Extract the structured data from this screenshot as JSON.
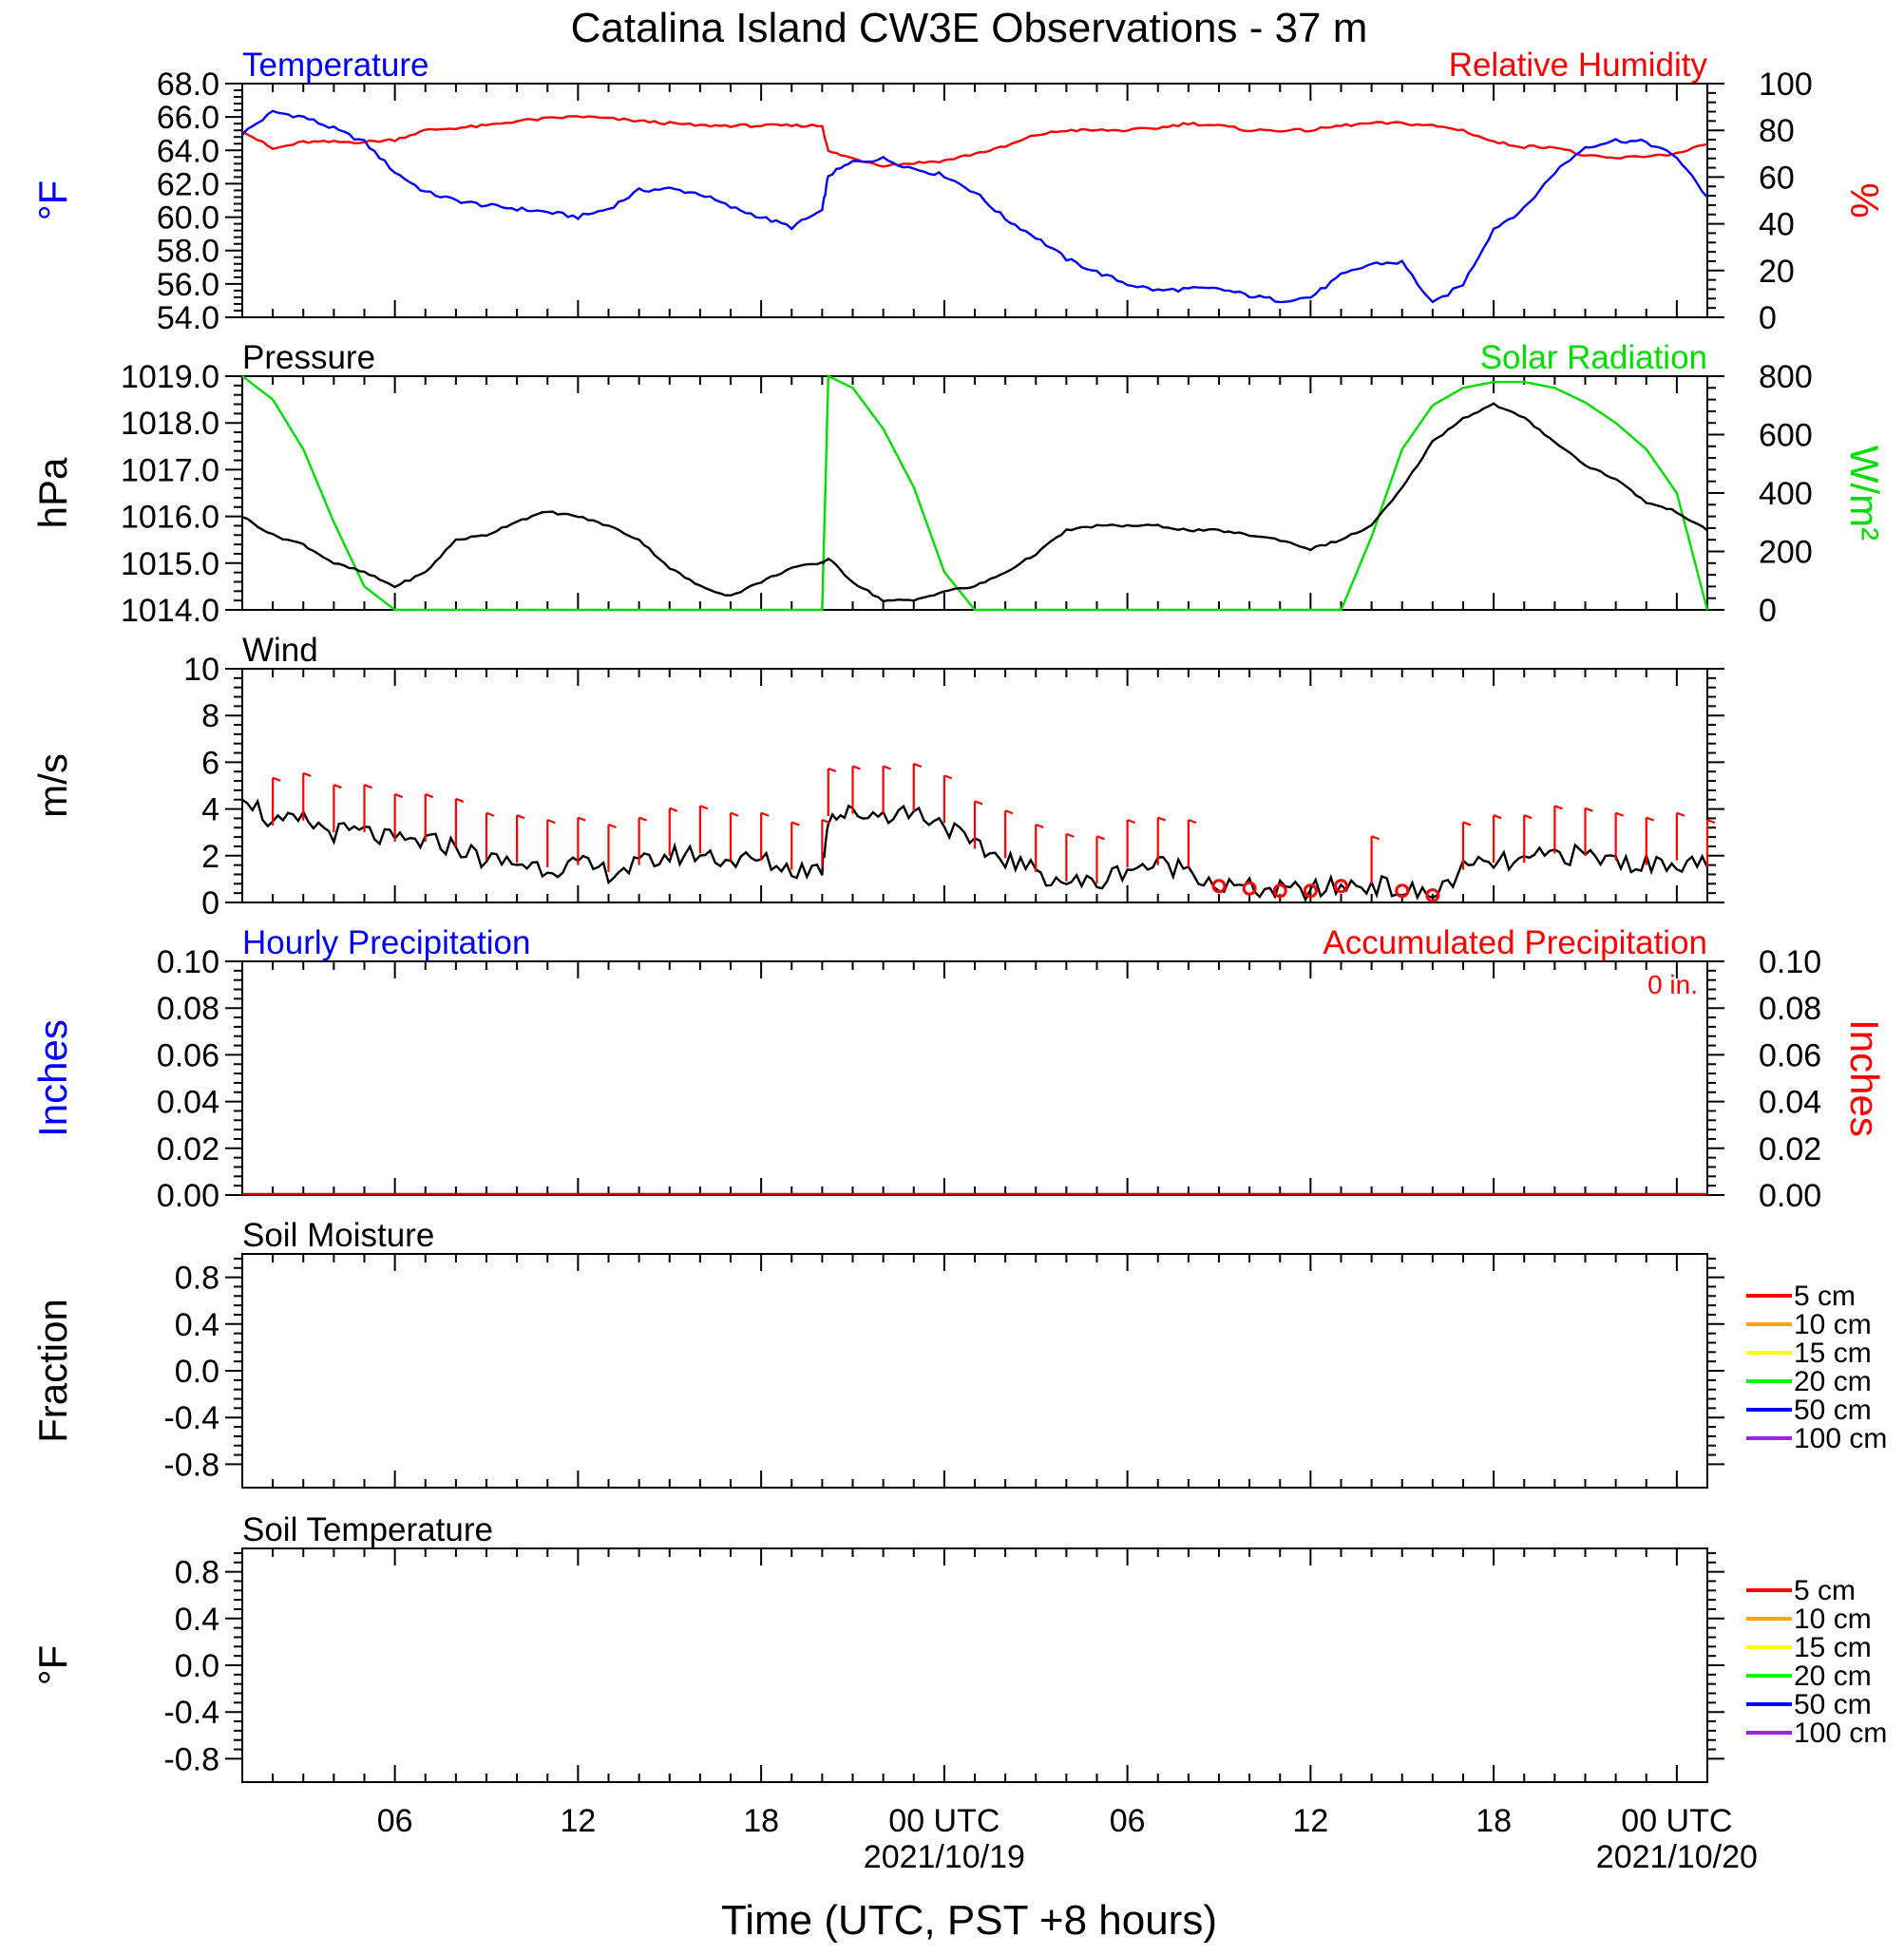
{
  "title": "Catalina Island CW3E Observations - 37 m",
  "xaxis": {
    "label": "Time (UTC, PST +8 hours)",
    "ticks": [
      "06",
      "12",
      "18",
      "00 UTC",
      "06",
      "12",
      "18",
      "00 UTC"
    ],
    "dates": [
      "2021/10/19",
      "2021/10/20"
    ]
  },
  "colors": {
    "temperature": "#0000ff",
    "humidity": "#ff0000",
    "pressure": "#000000",
    "solar": "#00dd00",
    "wind": "#000000",
    "barb": "#ff0000",
    "precip_hourly": "#0000ff",
    "precip_accum": "#cc0000"
  },
  "panels": {
    "temp_rh": {
      "left_title": "Temperature",
      "right_title": "Relative Humidity",
      "left_unit": "°F",
      "right_unit": "%",
      "left_ticks": [
        "68.0",
        "66.0",
        "64.0",
        "62.0",
        "60.0",
        "58.0",
        "56.0",
        "54.0"
      ],
      "right_ticks": [
        "100",
        "80",
        "60",
        "40",
        "20",
        "0"
      ]
    },
    "pressure_solar": {
      "left_title": "Pressure",
      "right_title": "Solar Radiation",
      "left_unit": "hPa",
      "right_unit": "W/m²",
      "left_ticks": [
        "1019.0",
        "1018.0",
        "1017.0",
        "1016.0",
        "1015.0",
        "1014.0"
      ],
      "right_ticks": [
        "800",
        "600",
        "400",
        "200",
        "0"
      ]
    },
    "wind": {
      "left_title": "Wind",
      "left_unit": "m/s",
      "left_ticks": [
        "10",
        "8",
        "6",
        "4",
        "2",
        "0"
      ]
    },
    "precip": {
      "left_title": "Hourly Precipitation",
      "right_title": "Accumulated Precipitation",
      "accum_total": "0 in.",
      "left_unit": "Inches",
      "right_unit": "Inches",
      "left_ticks": [
        "0.10",
        "0.08",
        "0.06",
        "0.04",
        "0.02",
        "0.00"
      ],
      "right_ticks": [
        "0.10",
        "0.08",
        "0.06",
        "0.04",
        "0.02",
        "0.00"
      ]
    },
    "soil_moisture": {
      "left_title": "Soil Moisture",
      "left_unit": "Fraction",
      "left_ticks": [
        "0.8",
        "0.4",
        "0.0",
        "-0.4",
        "-0.8"
      ],
      "legend": [
        {
          "label": "5 cm",
          "color": "#ff0000"
        },
        {
          "label": "10 cm",
          "color": "#ffa500"
        },
        {
          "label": "15 cm",
          "color": "#ffff00"
        },
        {
          "label": "20 cm",
          "color": "#00ff00"
        },
        {
          "label": "50 cm",
          "color": "#0000ff"
        },
        {
          "label": "100 cm",
          "color": "#a020f0"
        }
      ]
    },
    "soil_temperature": {
      "left_title": "Soil Temperature",
      "left_unit": "°F",
      "left_ticks": [
        "0.8",
        "0.4",
        "0.0",
        "-0.4",
        "-0.8"
      ],
      "legend": [
        {
          "label": "5 cm",
          "color": "#ff0000"
        },
        {
          "label": "10 cm",
          "color": "#ffa500"
        },
        {
          "label": "15 cm",
          "color": "#ffff00"
        },
        {
          "label": "20 cm",
          "color": "#00ff00"
        },
        {
          "label": "50 cm",
          "color": "#0000ff"
        },
        {
          "label": "100 cm",
          "color": "#a020f0"
        }
      ]
    }
  },
  "chart_data": [
    {
      "type": "line",
      "x_units": "hours since 2021-10-18 01 UTC",
      "x": [
        0,
        1,
        2,
        3,
        4,
        5,
        6,
        7,
        8,
        9,
        10,
        11,
        12,
        13,
        14,
        15,
        16,
        17,
        18,
        19,
        19.2,
        20,
        21,
        22,
        23,
        24,
        25,
        26,
        27,
        28,
        29,
        30,
        31,
        32,
        33,
        34,
        35,
        36,
        37,
        38,
        39,
        40,
        41,
        42,
        43,
        44,
        45,
        46,
        47,
        48
      ],
      "ylim_left": [
        54,
        68
      ],
      "ylim_right": [
        0,
        100
      ],
      "series": [
        {
          "name": "Temperature",
          "axis": "left",
          "values": [
            65.0,
            66.3,
            66.0,
            65.3,
            64.5,
            62.7,
            61.5,
            61.0,
            60.7,
            60.5,
            60.3,
            60.0,
            60.5,
            61.6,
            61.7,
            61.4,
            60.6,
            60.0,
            59.4,
            60.4,
            62.5,
            63.3,
            63.5,
            62.9,
            62.5,
            61.5,
            59.9,
            58.8,
            57.5,
            56.7,
            56.0,
            55.6,
            55.7,
            55.7,
            55.3,
            55.0,
            55.2,
            56.5,
            57.2,
            57.3,
            54.8,
            56.0,
            59.3,
            60.5,
            62.7,
            64.2,
            64.6,
            64.5,
            63.6,
            61.2
          ]
        },
        {
          "name": "Relative Humidity",
          "axis": "right",
          "values": [
            80,
            72,
            75,
            75,
            75,
            76,
            80,
            81,
            82,
            84,
            85,
            86,
            85,
            84,
            83,
            82,
            82,
            82,
            82,
            82,
            71,
            68,
            65,
            66,
            67,
            70,
            73,
            78,
            80,
            80,
            80,
            81,
            83,
            82,
            80,
            80,
            80,
            82,
            83,
            83,
            82,
            80,
            75,
            73,
            73,
            69,
            68,
            69,
            70,
            74
          ]
        }
      ]
    },
    {
      "type": "line",
      "x_units": "hours since 2021-10-18 01 UTC",
      "x": [
        0,
        1,
        2,
        3,
        4,
        5,
        6,
        7,
        8,
        9,
        10,
        11,
        12,
        13,
        14,
        15,
        16,
        17,
        18,
        19,
        19.2,
        20,
        21,
        22,
        23,
        24,
        25,
        26,
        27,
        28,
        29,
        30,
        31,
        32,
        33,
        34,
        35,
        36,
        37,
        38,
        39,
        40,
        41,
        42,
        43,
        44,
        45,
        46,
        47,
        48
      ],
      "ylim_left": [
        1014,
        1019
      ],
      "ylim_right": [
        0,
        800
      ],
      "series": [
        {
          "name": "Pressure",
          "axis": "left",
          "values": [
            1016.0,
            1015.6,
            1015.4,
            1015.0,
            1014.8,
            1014.5,
            1014.8,
            1015.5,
            1015.6,
            1015.9,
            1016.1,
            1016.0,
            1015.8,
            1015.5,
            1014.9,
            1014.5,
            1014.3,
            1014.6,
            1014.9,
            1015.0,
            1015.1,
            1014.6,
            1014.2,
            1014.2,
            1014.4,
            1014.5,
            1014.8,
            1015.2,
            1015.7,
            1015.8,
            1015.8,
            1015.8,
            1015.7,
            1015.7,
            1015.6,
            1015.5,
            1015.3,
            1015.5,
            1015.8,
            1016.6,
            1017.6,
            1018.1,
            1018.4,
            1018.1,
            1017.6,
            1017.1,
            1016.8,
            1016.3,
            1016.1,
            1015.7
          ]
        },
        {
          "name": "Solar Radiation",
          "axis": "right",
          "values": [
            800,
            720,
            550,
            300,
            80,
            0,
            0,
            0,
            0,
            0,
            0,
            0,
            0,
            0,
            0,
            0,
            0,
            0,
            0,
            0,
            800,
            760,
            620,
            420,
            130,
            0,
            0,
            0,
            0,
            0,
            0,
            0,
            0,
            0,
            0,
            0,
            0,
            0,
            250,
            550,
            700,
            760,
            780,
            780,
            760,
            710,
            640,
            550,
            400,
            0
          ]
        }
      ]
    },
    {
      "type": "line",
      "x_units": "hours since 2021-10-18 01 UTC",
      "x": [
        0,
        1,
        2,
        3,
        4,
        5,
        6,
        7,
        8,
        9,
        10,
        11,
        12,
        13,
        14,
        15,
        16,
        17,
        18,
        19,
        19.2,
        20,
        21,
        22,
        23,
        24,
        25,
        26,
        27,
        28,
        29,
        30,
        31,
        32,
        33,
        34,
        35,
        36,
        37,
        38,
        39,
        40,
        41,
        42,
        43,
        44,
        45,
        46,
        47,
        48
      ],
      "ylim": [
        0,
        10
      ],
      "series": [
        {
          "name": "Wind",
          "values": [
            4.8,
            3.3,
            3.5,
            3.0,
            3.0,
            2.6,
            2.6,
            2.4,
            1.8,
            1.7,
            1.5,
            1.6,
            1.3,
            1.6,
            2.0,
            2.1,
            1.8,
            1.8,
            1.4,
            1.5,
            3.7,
            3.8,
            3.8,
            3.9,
            3.4,
            2.3,
            1.9,
            1.3,
            0.9,
            0.8,
            1.5,
            1.6,
            1.5,
            0.7,
            0.6,
            0.5,
            0.5,
            0.7,
            0.8,
            0.5,
            0.3,
            1.4,
            1.7,
            1.7,
            2.1,
            2.0,
            1.8,
            1.6,
            1.8,
            1.5
          ]
        }
      ]
    },
    {
      "type": "line",
      "x_units": "hours since 2021-10-18 01 UTC",
      "x": [
        0,
        48
      ],
      "ylim": [
        0,
        0.1
      ],
      "series": [
        {
          "name": "Hourly Precipitation",
          "values": [
            0,
            0
          ]
        },
        {
          "name": "Accumulated Precipitation",
          "values": [
            0,
            0
          ]
        }
      ]
    },
    {
      "type": "line",
      "ylim": [
        -1,
        1
      ],
      "series": []
    },
    {
      "type": "line",
      "ylim": [
        -1,
        1
      ],
      "series": []
    }
  ]
}
